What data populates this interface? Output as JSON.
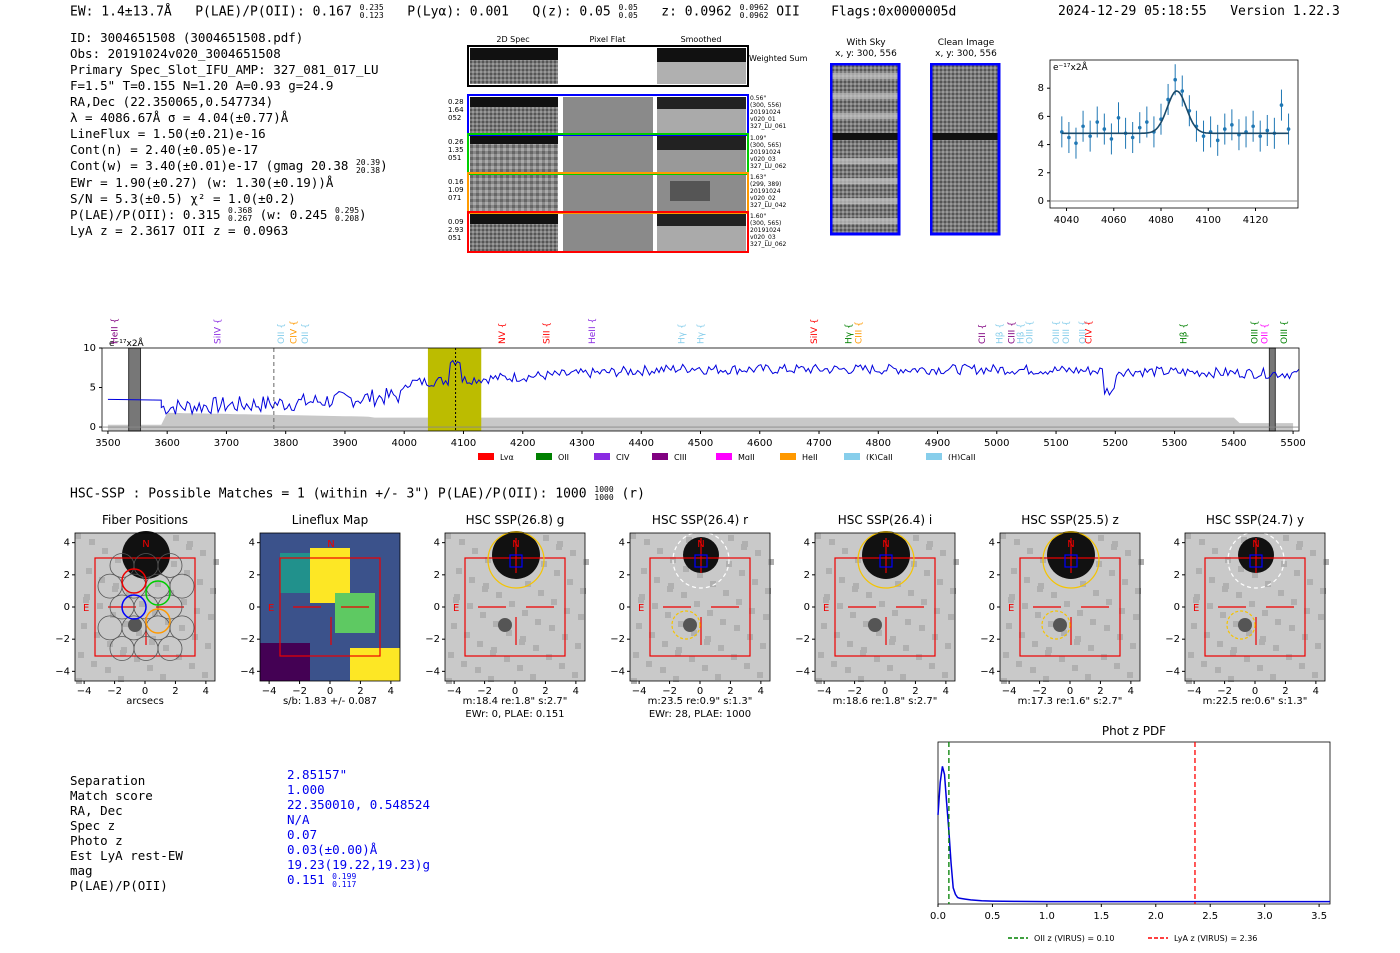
{
  "header": {
    "ew": "EW: 1.4±13.7Å",
    "plae": "P(LAE)/P(OII): 0.167",
    "plae_hi": "0.235",
    "plae_lo": "0.123",
    "plya": "P(Lyα): 0.001",
    "qz": "Q(z): 0.05",
    "qz_hi": "0.05",
    "qz_lo": "0.05",
    "z": "z: 0.0962",
    "z_hi": "0.0962",
    "z_lo": "0.0962",
    "z_line": "OII",
    "flags": "Flags:0x0000005d",
    "datetime": "2024-12-29 05:18:55",
    "version": "Version 1.22.3"
  },
  "info": {
    "id": "ID: 3004651508 (3004651508.pdf)",
    "obs": "Obs: 20191024v020_3004651508",
    "slot": "Primary Spec_Slot_IFU_AMP: 327_081_017_LU",
    "params": "F=1.5\"  T=0.155  N=1.20  A=0.93  g=24.9",
    "radec": "RA,Dec (22.350065,0.547734)",
    "lambda": "λ = 4086.67Å  σ = 4.04(±0.77)Å",
    "lineflux": "LineFlux = 1.50(±0.21)e-16",
    "contn": "Cont(n) = 2.40(±0.05)e-17",
    "contw": "Cont(w) = 3.40(±0.01)e-17 (gmag 20.38",
    "contw_hi": "20.39",
    "contw_lo": "20.38",
    "contw_close": ")",
    "ewr": "EWr = 1.90(±0.27) (w: 1.30(±0.19))Å",
    "sn": "S/N = 5.3(±0.5)  χ² = 1.0(±0.2)",
    "plae": "P(LAE)/P(OII): 0.315",
    "plae_hi": "0.368",
    "plae_lo": "0.267",
    "plae_w": "(w: 0.245",
    "plae_w_hi": "0.295",
    "plae_w_lo": "0.208",
    "plae_w_close": ")",
    "lya": "LyA z = 2.3617  OII z = 0.0963"
  },
  "cutouts": {
    "col_2d": "2D Spec",
    "col_flat": "Pixel Flat",
    "col_smooth": "Smoothed",
    "weighted": "Weighted Sum",
    "rows": [
      {
        "l1": "0.28",
        "l2": "1.64",
        "l3": "052",
        "r1": "0.56\"",
        "r2": "(300, 556)",
        "r3": "20191024",
        "r4": "v020_01",
        "r5": "327_LU_061",
        "color": "#0000ff"
      },
      {
        "l1": "0.26",
        "l2": "1.35",
        "l3": "051",
        "r1": "1.09\"",
        "r2": "(300, 565)",
        "r3": "20191024",
        "r4": "v020_03",
        "r5": "327_LU_062",
        "color": "#00cc00"
      },
      {
        "l1": "0.16",
        "l2": "1.09",
        "l3": "071",
        "r1": "1.63\"",
        "r2": "(299, 389)",
        "r3": "20191024",
        "r4": "v020_02",
        "r5": "327_LU_042",
        "color": "#ff9900"
      },
      {
        "l1": "0.09",
        "l2": "2.93",
        "l3": "051",
        "r1": "1.60\"",
        "r2": "(300, 565)",
        "r3": "20191024",
        "r4": "v020_03",
        "r5": "327_LU_062",
        "color": "#ff0000"
      }
    ],
    "with_sky": "With Sky",
    "with_sky_xy": "x, y: 300, 556",
    "clean": "Clean Image",
    "clean_xy": "x, y: 300, 556"
  },
  "hsc": {
    "title": "HSC-SSP : Possible Matches = 1 (within +/- 3\")  P(LAE)/P(OII): 1000",
    "hi": "1000",
    "lo": "1000",
    "close": "(r)",
    "panels": [
      {
        "title": "Fiber Positions",
        "l1": "arcsecs",
        "l2": ""
      },
      {
        "title": "Lineflux Map",
        "l1": "s/b: 1.83 +/- 0.087",
        "l2": ""
      },
      {
        "title": "HSC SSP(26.8) g",
        "l1": "m:18.4  re:1.8\"  s:2.7\"",
        "l2": "EWr: 0, PLAE: 0.151"
      },
      {
        "title": "HSC SSP(26.4) r",
        "l1": "m:23.5  re:0.9\"  s:1.3\"",
        "l2": "EWr: 28, PLAE: 1000"
      },
      {
        "title": "HSC SSP(26.4) i",
        "l1": "m:18.6  re:1.8\"  s:2.7\"",
        "l2": ""
      },
      {
        "title": "HSC SSP(25.5) z",
        "l1": "m:17.3  re:1.6\"  s:2.7\"",
        "l2": ""
      },
      {
        "title": "HSC SSP(24.7) y",
        "l1": "m:22.5  re:0.6\"  s:1.3\"",
        "l2": ""
      }
    ],
    "labels_n": "N",
    "labels_e": "E"
  },
  "match": {
    "keys": [
      "Separation",
      "Match score",
      "RA, Dec",
      "Spec z",
      "Photo z",
      "Est LyA rest-EW",
      "mag",
      "P(LAE)/P(OII)"
    ],
    "vals": [
      "2.85157\"",
      "1.000",
      "22.350010, 0.548524",
      "N/A",
      "0.07",
      "0.03(±0.00)Å",
      "19.23(19.22,19.23)g",
      "0.151"
    ],
    "plae_hi": "0.199",
    "plae_lo": "0.117"
  },
  "chart_data": [
    {
      "type": "line",
      "title": "",
      "ylabel": "e⁻¹⁷x2Å",
      "x": [
        4038,
        4041,
        4044,
        4047,
        4050,
        4053,
        4056,
        4059,
        4062,
        4065,
        4068,
        4071,
        4074,
        4077,
        4080,
        4083,
        4086,
        4089,
        4092,
        4095,
        4098,
        4101,
        4104,
        4107,
        4110,
        4113,
        4116,
        4119,
        4122,
        4125,
        4128,
        4131,
        4134
      ],
      "y": [
        4.9,
        4.5,
        4.1,
        5.3,
        4.6,
        5.6,
        5.1,
        4.4,
        5.9,
        4.8,
        4.5,
        5.2,
        5.6,
        4.9,
        5.8,
        7.2,
        8.6,
        7.8,
        6.4,
        5.3,
        4.6,
        4.9,
        4.3,
        5.1,
        5.4,
        4.7,
        4.9,
        5.3,
        4.6,
        5.0,
        4.8,
        6.8,
        5.1
      ],
      "err": 1.1,
      "fit": "gaussian",
      "fit_center": 4086.67,
      "fit_sigma": 4.04,
      "fit_amp": 3.0,
      "fit_cont": 4.8,
      "xlim": [
        4033,
        4138
      ],
      "ylim": [
        -0.5,
        10
      ],
      "xticks": [
        4040,
        4060,
        4080,
        4100,
        4120
      ],
      "yticks": [
        0,
        2,
        4,
        6,
        8
      ]
    },
    {
      "type": "line",
      "title": "",
      "ylabel": "e⁻¹⁷x2Å",
      "xlim": [
        3490,
        5510
      ],
      "ylim": [
        -0.5,
        10
      ],
      "xticks": [
        3500,
        3600,
        3700,
        3800,
        3900,
        4000,
        4100,
        4200,
        4300,
        4400,
        4500,
        4600,
        4700,
        4800,
        4900,
        5000,
        5100,
        5200,
        5300,
        5400,
        5500
      ],
      "yticks": [
        0,
        5,
        10
      ],
      "highlight_band": [
        4040,
        4130
      ],
      "emission_wave": 4086.67,
      "dashed_gray": 3780,
      "bad_regions": [
        [
          3535,
          3555
        ],
        [
          5460,
          5470
        ]
      ],
      "line_labels": [
        {
          "name": "HeII",
          "wave": 3516,
          "color": "#800080"
        },
        {
          "name": "SiIV",
          "wave": 3690,
          "color": "#8a2be2"
        },
        {
          "name": "OII",
          "wave": 3797,
          "color": "#87ceeb"
        },
        {
          "name": "CIV",
          "wave": 3818,
          "color": "#ff9900"
        },
        {
          "name": "OII",
          "wave": 3838,
          "color": "#87ceeb"
        },
        {
          "name": "NV",
          "wave": 4170,
          "color": "#ff0000"
        },
        {
          "name": "SiII",
          "wave": 4245,
          "color": "#ff0000"
        },
        {
          "name": "HeII",
          "wave": 4322,
          "color": "#8a2be2"
        },
        {
          "name": "Hγ",
          "wave": 4473,
          "color": "#87ceeb"
        },
        {
          "name": "Hγ",
          "wave": 4505,
          "color": "#87ceeb"
        },
        {
          "name": "SiIV",
          "wave": 4697,
          "color": "#ff0000"
        },
        {
          "name": "Hγ",
          "wave": 4755,
          "color": "#008000"
        },
        {
          "name": "CIII",
          "wave": 4755,
          "color": "#ff9900"
        },
        {
          "name": "CII",
          "wave": 4980,
          "color": "#800080"
        },
        {
          "name": "Hβ",
          "wave": 5010,
          "color": "#87ceeb"
        },
        {
          "name": "CIII",
          "wave": 5030,
          "color": "#800080"
        },
        {
          "name": "Hβ",
          "wave": 5045,
          "color": "#87ceeb"
        },
        {
          "name": "OIII",
          "wave": 5060,
          "color": "#87ceeb"
        },
        {
          "name": "OIII",
          "wave": 5105,
          "color": "#87ceeb"
        },
        {
          "name": "OIII",
          "wave": 5105,
          "color": "#87ceeb"
        },
        {
          "name": "OIII",
          "wave": 5150,
          "color": "#87ceeb"
        },
        {
          "name": "CIV",
          "wave": 5160,
          "color": "#ff0000"
        },
        {
          "name": "Hβ",
          "wave": 5320,
          "color": "#008000"
        },
        {
          "name": "OIII",
          "wave": 5440,
          "color": "#008000"
        },
        {
          "name": "OII",
          "wave": 5440,
          "color": "#ff00ff"
        },
        {
          "name": "OIII",
          "wave": 5490,
          "color": "#008000"
        }
      ],
      "legend": [
        {
          "name": "Lyα",
          "color": "#ff0000"
        },
        {
          "name": "OII",
          "color": "#008000"
        },
        {
          "name": "CIV",
          "color": "#8a2be2"
        },
        {
          "name": "CIII",
          "color": "#800080"
        },
        {
          "name": "MgII",
          "color": "#ff00ff"
        },
        {
          "name": "HeII",
          "color": "#ff9900"
        },
        {
          "name": "(K)CaII",
          "color": "#87ceeb"
        },
        {
          "name": "(H)CaII",
          "color": "#87ceeb"
        }
      ]
    },
    {
      "type": "line",
      "title": "Phot z PDF",
      "xlim": [
        0,
        3.6
      ],
      "ylim": [
        0,
        1
      ],
      "xticks": [
        0.0,
        0.5,
        1.0,
        1.5,
        2.0,
        2.5,
        3.0,
        3.5
      ],
      "x": [
        0.0,
        0.02,
        0.04,
        0.06,
        0.08,
        0.1,
        0.12,
        0.14,
        0.16,
        0.18,
        0.2,
        0.25,
        0.3,
        0.4,
        0.5,
        0.7,
        1.0,
        1.5,
        2.0,
        2.5,
        3.0,
        3.5,
        3.6
      ],
      "y": [
        0.55,
        0.75,
        0.85,
        0.8,
        0.62,
        0.45,
        0.25,
        0.1,
        0.06,
        0.04,
        0.035,
        0.03,
        0.025,
        0.02,
        0.018,
        0.016,
        0.015,
        0.015,
        0.015,
        0.015,
        0.015,
        0.015,
        0.015
      ],
      "vlines": [
        {
          "x": 0.1,
          "color": "#008000",
          "label": "OII z (VIRUS) = 0.10"
        },
        {
          "x": 2.36,
          "color": "#ff0000",
          "label": "LyA z (VIRUS) = 2.36"
        }
      ]
    }
  ]
}
